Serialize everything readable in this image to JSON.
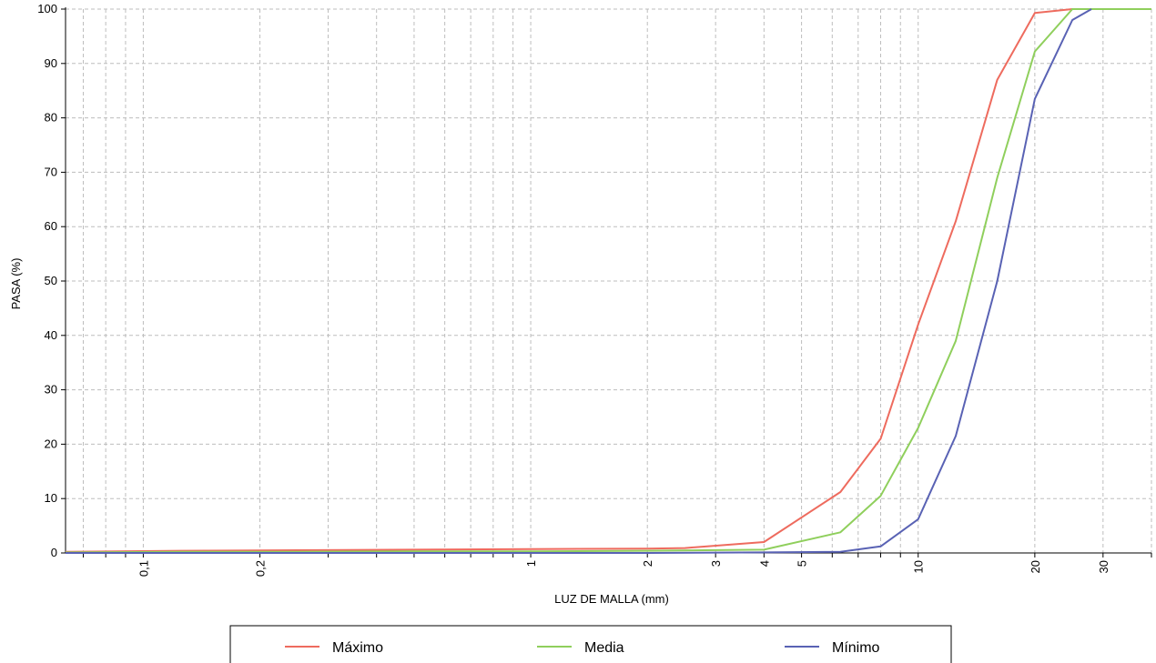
{
  "chart_data": {
    "type": "line",
    "xlabel": "LUZ DE MALLA (mm)",
    "ylabel": "PASA (%)",
    "x_scale": "log",
    "xlim": [
      0.063,
      40
    ],
    "ylim": [
      0,
      100
    ],
    "grid": true,
    "legend_position": "bottom",
    "x_tick_labels": [
      {
        "value": 0.1,
        "label": "0,1"
      },
      {
        "value": 0.2,
        "label": "0,2"
      },
      {
        "value": 1,
        "label": "1"
      },
      {
        "value": 2,
        "label": "2"
      },
      {
        "value": 3,
        "label": "3"
      },
      {
        "value": 4,
        "label": "4"
      },
      {
        "value": 5,
        "label": "5"
      },
      {
        "value": 10,
        "label": "10"
      },
      {
        "value": 20,
        "label": "20"
      },
      {
        "value": 30,
        "label": "30"
      }
    ],
    "y_ticks": [
      0,
      10,
      20,
      30,
      40,
      50,
      60,
      70,
      80,
      90,
      100
    ],
    "series": [
      {
        "name": "Máximo",
        "color": "#ee6b5e",
        "x": [
          0.063,
          0.125,
          0.25,
          0.5,
          1,
          2,
          2.5,
          4,
          6.3,
          8,
          10,
          12.5,
          16,
          20,
          25
        ],
        "y": [
          0.2,
          0.4,
          0.5,
          0.6,
          0.7,
          0.8,
          0.9,
          2,
          11.2,
          21,
          42,
          61,
          87,
          99.3,
          100
        ]
      },
      {
        "name": "Media",
        "color": "#8fcf5c",
        "x": [
          0.063,
          0.125,
          0.25,
          0.5,
          1,
          2,
          4,
          6.3,
          8,
          10,
          12.5,
          16,
          20,
          25,
          31.5,
          40
        ],
        "y": [
          0.1,
          0.2,
          0.2,
          0.3,
          0.3,
          0.4,
          0.6,
          3.8,
          10.5,
          23,
          39,
          69,
          92.2,
          100,
          100,
          100
        ]
      },
      {
        "name": "Mínimo",
        "color": "#5962b4",
        "x": [
          0.063,
          0.125,
          0.25,
          0.5,
          1,
          2,
          4,
          6.3,
          8,
          10,
          12.5,
          16,
          20,
          25,
          28
        ],
        "y": [
          0,
          0,
          0,
          0,
          0,
          0,
          0.1,
          0.2,
          1.2,
          6.2,
          21.5,
          50,
          83.5,
          98,
          100
        ]
      }
    ]
  }
}
